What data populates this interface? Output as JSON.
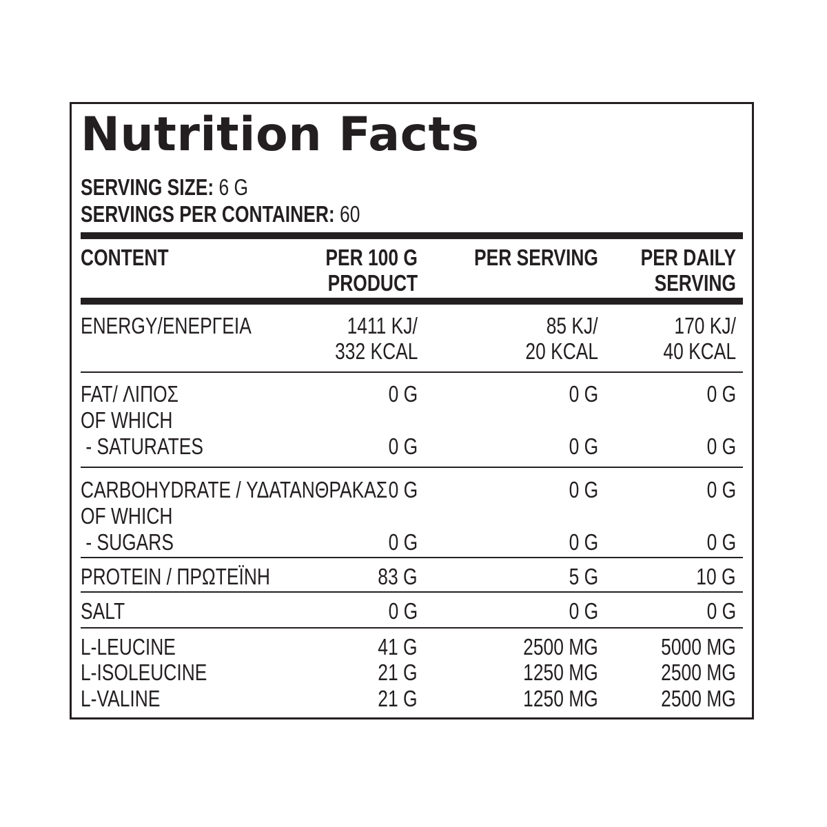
{
  "title": "Nutrition Facts",
  "serving_size": {
    "label": "SERVING SIZE:",
    "value": "6 G"
  },
  "servings_per_container": {
    "label": "SERVINGS PER CONTAINER:",
    "value": "60"
  },
  "headers": {
    "content": "CONTENT",
    "per100_line1": "PER 100 G",
    "per100_line2": "PRODUCT",
    "per_serving": "PER SERVING",
    "daily_line1": "PER DAILY",
    "daily_line2": "SERVING"
  },
  "rows": {
    "energy": {
      "label": "ENERGY/ΕΝΕΡΓΕΙΑ",
      "per100_a": "1411 KJ/",
      "per100_b": "332 KCAL",
      "serving_a": "85 KJ/",
      "serving_b": "20 KCAL",
      "daily_a": "170 KJ/",
      "daily_b": "40 KCAL"
    },
    "fat": {
      "label": "FAT/ ΛΙΠΟΣ",
      "per100": "0 G",
      "serving": "0 G",
      "daily": "0 G"
    },
    "fat_of_which": "OF WHICH",
    "saturates": {
      "label": " - SATURATES",
      "per100": "0 G",
      "serving": "0 G",
      "daily": "0 G"
    },
    "carbohydrate": {
      "label": "CARBOHYDRATE / ΥΔΑΤΑΝΘΡΑΚΑΣ",
      "per100": "0 G",
      "serving": "0 G",
      "daily": "0 G"
    },
    "carb_of_which": "OF WHICH",
    "sugars": {
      "label": " - SUGARS",
      "per100": "0 G",
      "serving": "0 G",
      "daily": "0 G"
    },
    "protein": {
      "label": "PROTEIN / ΠΡΩΤΕΪΝΗ",
      "per100": "83 G",
      "serving": "5 G",
      "daily": "10 G"
    },
    "salt": {
      "label": "SALT",
      "per100": "0 G",
      "serving": "0 G",
      "daily": "0 G"
    },
    "leucine": {
      "label": "L-LEUCINE",
      "per100": "41 G",
      "serving": "2500 MG",
      "daily": "5000 MG"
    },
    "isoleucine": {
      "label": "L-ISOLEUCINE",
      "per100": "21 G",
      "serving": "1250 MG",
      "daily": "2500 MG"
    },
    "valine": {
      "label": "L-VALINE",
      "per100": "21 G",
      "serving": "1250 MG",
      "daily": "2500 MG"
    }
  }
}
